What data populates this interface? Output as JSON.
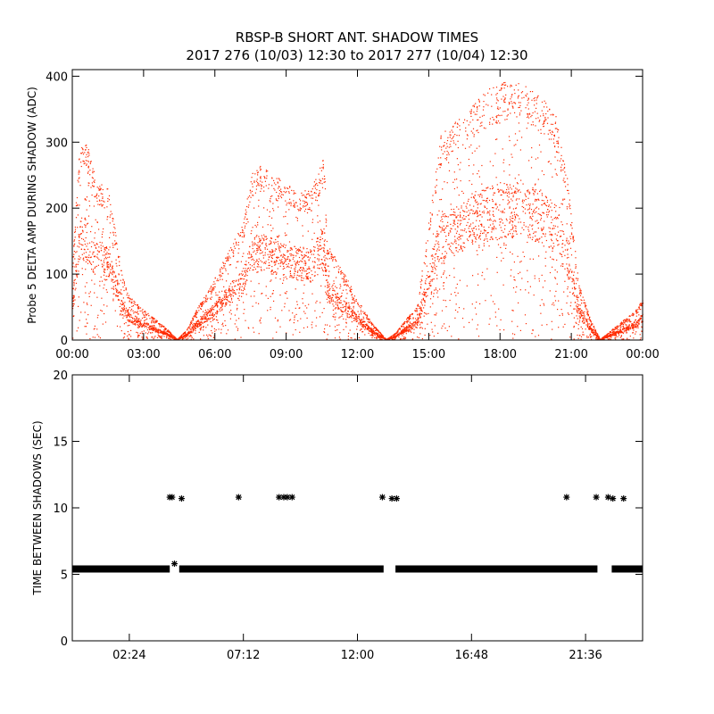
{
  "title_line1": "RBSP-B SHORT ANT. SHADOW TIMES",
  "title_line2": "2017 276 (10/03) 12:30 to 2017 277 (10/04) 12:30",
  "chart_data": [
    {
      "type": "scatter",
      "ylabel": "Probe 5 DELTA AMP DURING SHADOW (ADC)",
      "xlabel": "",
      "xlim": [
        0,
        24
      ],
      "ylim": [
        0,
        410
      ],
      "x_ticks": [
        0,
        3,
        6,
        9,
        12,
        15,
        18,
        21,
        24
      ],
      "x_tick_labels": [
        "00:00",
        "03:00",
        "06:00",
        "09:00",
        "12:00",
        "15:00",
        "18:00",
        "21:00",
        "00:00"
      ],
      "y_ticks": [
        0,
        100,
        200,
        300,
        400
      ],
      "y_tick_labels": [
        "0",
        "100",
        "200",
        "300",
        "400"
      ],
      "marker_color": "#ff2a00",
      "series": [
        {
          "envelope": [
            [
              0.0,
              120
            ],
            [
              0.3,
              300
            ],
            [
              0.6,
              300
            ],
            [
              1.0,
              240
            ],
            [
              1.5,
              230
            ],
            [
              1.8,
              165
            ],
            [
              2.1,
              95
            ],
            [
              2.4,
              65
            ],
            [
              3.0,
              45
            ],
            [
              3.5,
              30
            ],
            [
              4.0,
              15
            ],
            [
              4.4,
              0
            ]
          ]
        },
        {
          "envelope": [
            [
              4.4,
              0
            ],
            [
              4.8,
              15
            ],
            [
              5.2,
              45
            ],
            [
              5.8,
              80
            ],
            [
              6.5,
              130
            ],
            [
              7.2,
              180
            ],
            [
              7.5,
              255
            ],
            [
              8.0,
              265
            ],
            [
              9.0,
              235
            ],
            [
              10.0,
              225
            ],
            [
              10.6,
              280
            ],
            [
              10.7,
              145
            ],
            [
              11.3,
              110
            ],
            [
              12.0,
              60
            ],
            [
              12.6,
              25
            ],
            [
              13.2,
              0
            ]
          ]
        },
        {
          "envelope": [
            [
              13.2,
              0
            ],
            [
              13.6,
              10
            ],
            [
              14.0,
              30
            ],
            [
              14.5,
              50
            ],
            [
              15.0,
              190
            ],
            [
              15.5,
              310
            ],
            [
              16.5,
              345
            ],
            [
              17.5,
              380
            ],
            [
              18.5,
              395
            ],
            [
              19.5,
              375
            ],
            [
              20.3,
              345
            ],
            [
              20.8,
              250
            ],
            [
              21.3,
              85
            ],
            [
              21.8,
              30
            ],
            [
              22.2,
              0
            ]
          ]
        },
        {
          "envelope": [
            [
              22.2,
              0
            ],
            [
              22.7,
              15
            ],
            [
              23.2,
              30
            ],
            [
              23.7,
              45
            ],
            [
              24.0,
              65
            ]
          ]
        }
      ]
    },
    {
      "type": "scatter",
      "ylabel": "TIME BETWEEN SHADOWS (SEC)",
      "xlabel": "",
      "xlim": [
        0,
        24
      ],
      "ylim": [
        0,
        20
      ],
      "x_ticks": [
        2.4,
        7.2,
        12.0,
        16.8,
        21.6
      ],
      "x_tick_labels": [
        "02:24",
        "07:12",
        "12:00",
        "16:48",
        "21:36"
      ],
      "y_ticks": [
        0,
        5,
        10,
        15,
        20
      ],
      "y_tick_labels": [
        "0",
        "5",
        "10",
        "15",
        "20"
      ],
      "marker": "asterisk",
      "marker_color": "#000000",
      "baseline_value": 5.4,
      "baseline_segments": [
        [
          0.0,
          4.1
        ],
        [
          4.5,
          13.1
        ],
        [
          13.6,
          22.1
        ],
        [
          22.7,
          24.0
        ]
      ],
      "outliers": [
        {
          "x": 4.1,
          "y": 10.8
        },
        {
          "x": 4.2,
          "y": 10.8
        },
        {
          "x": 4.6,
          "y": 10.7
        },
        {
          "x": 4.3,
          "y": 5.8
        },
        {
          "x": 7.0,
          "y": 10.8
        },
        {
          "x": 8.7,
          "y": 10.8
        },
        {
          "x": 8.9,
          "y": 10.8
        },
        {
          "x": 9.05,
          "y": 10.8
        },
        {
          "x": 9.25,
          "y": 10.8
        },
        {
          "x": 13.05,
          "y": 10.8
        },
        {
          "x": 13.45,
          "y": 10.7
        },
        {
          "x": 13.65,
          "y": 10.7
        },
        {
          "x": 20.8,
          "y": 10.8
        },
        {
          "x": 22.05,
          "y": 10.8
        },
        {
          "x": 22.55,
          "y": 10.8
        },
        {
          "x": 22.75,
          "y": 10.7
        },
        {
          "x": 23.2,
          "y": 10.7
        }
      ]
    }
  ]
}
